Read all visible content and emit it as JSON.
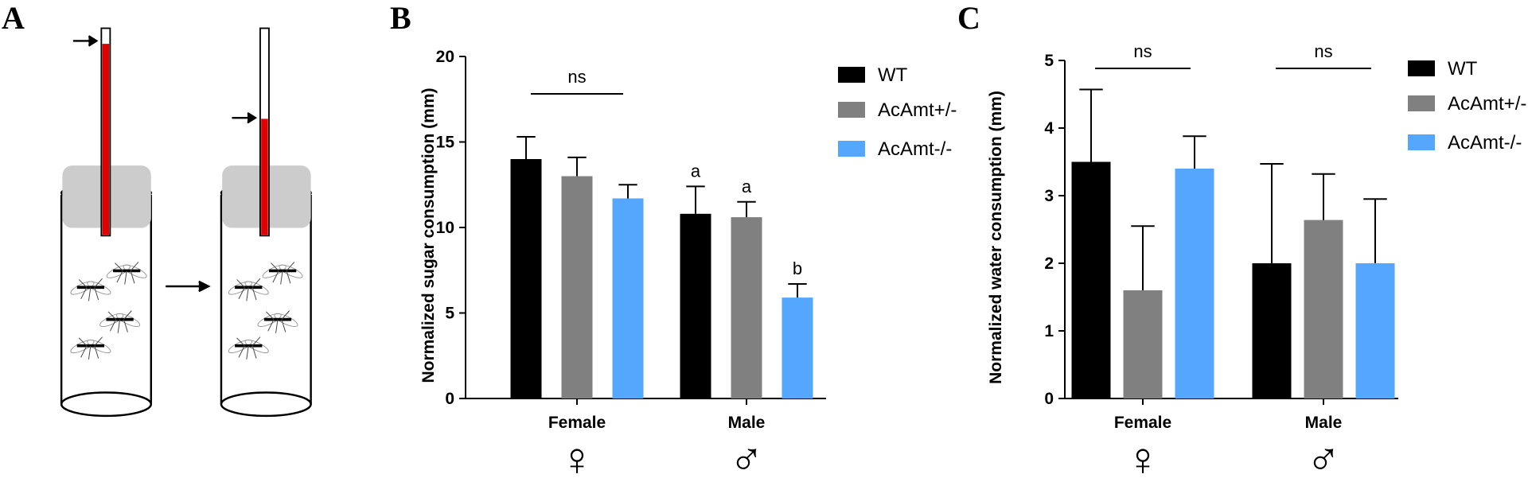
{
  "panel_labels": [
    "A",
    "B",
    "C"
  ],
  "chart_data": [
    {
      "type": "bar",
      "y_label": "Normalized sugar consumption (mm)",
      "categories": [
        "Female",
        "Male"
      ],
      "category_symbols": [
        "♀",
        "♂"
      ],
      "series": [
        {
          "name": "WT",
          "color": "#000000",
          "values": [
            14.0,
            10.8
          ],
          "errors": [
            1.3,
            1.6
          ],
          "letters": [
            null,
            "a"
          ]
        },
        {
          "name": "AcAmt+/-",
          "color": "#808080",
          "values": [
            13.0,
            10.6
          ],
          "errors": [
            1.1,
            0.9
          ],
          "letters": [
            null,
            "a"
          ]
        },
        {
          "name": "AcAmt-/-",
          "color": "#55a6ff",
          "values": [
            11.7,
            5.9
          ],
          "errors": [
            0.8,
            0.8
          ],
          "letters": [
            null,
            "b"
          ]
        }
      ],
      "brackets": [
        "ns",
        null
      ],
      "ylim": [
        0,
        20
      ],
      "yticks": [
        0,
        5,
        10,
        15,
        20
      ]
    },
    {
      "type": "bar",
      "y_label": "Normalized water consumption (mm)",
      "categories": [
        "Female",
        "Male"
      ],
      "category_symbols": [
        "♀",
        "♂"
      ],
      "series": [
        {
          "name": "WT",
          "color": "#000000",
          "values": [
            3.5,
            2.0
          ],
          "errors": [
            1.07,
            1.47
          ]
        },
        {
          "name": "AcAmt+/-",
          "color": "#808080",
          "values": [
            1.6,
            2.64
          ],
          "errors": [
            0.95,
            0.68
          ]
        },
        {
          "name": "AcAmt-/-",
          "color": "#55a6ff",
          "values": [
            3.4,
            2.0
          ],
          "errors": [
            0.48,
            0.95
          ]
        }
      ],
      "brackets": [
        "ns",
        "ns"
      ],
      "ylim": [
        0,
        5
      ],
      "yticks": [
        0,
        1,
        2,
        3,
        4,
        5
      ]
    }
  ]
}
